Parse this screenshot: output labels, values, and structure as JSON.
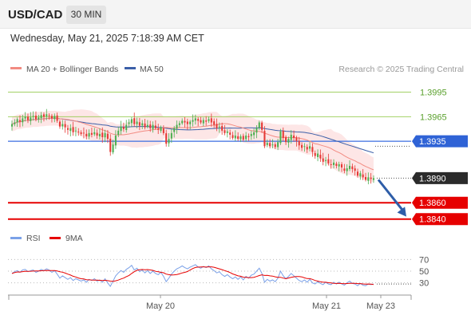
{
  "header": {
    "symbol": "USD/CAD",
    "timeframe": "30 MIN",
    "datetime": "Wednesday, May 21, 2025 7:18:39 AM CET"
  },
  "colors": {
    "bull": "#4caf50",
    "bear": "#e53935",
    "ma20": "#f28b82",
    "bollinger": "#fde3e3",
    "ma50": "#3b5fa8",
    "support": "#e60000",
    "resistance": "#8cc63f",
    "pivot": "#3b6fe0",
    "arrow": "#2e5da8",
    "rsi": "#7ba1e8"
  },
  "chart_data": [
    {
      "type": "candlestick",
      "legend": [
        {
          "name": "MA 20 + Bollinger Bands",
          "color": "#f28b82"
        },
        {
          "name": "MA 50",
          "color": "#3b5fa8"
        }
      ],
      "credit": "Research © 2025 Trading Central",
      "y_range": [
        1.383,
        1.4015
      ],
      "x_ticks": [
        "May 20",
        "May 21",
        "May 23"
      ],
      "levels": [
        {
          "label": "1.3995",
          "value": 1.3995,
          "kind": "resistance"
        },
        {
          "label": "1.3965",
          "value": 1.3965,
          "kind": "resistance"
        },
        {
          "label": "1.3935",
          "value": 1.3935,
          "kind": "pivot"
        },
        {
          "label": "1.3890",
          "value": 1.389,
          "kind": "last"
        },
        {
          "label": "1.3860",
          "value": 1.386,
          "kind": "support"
        },
        {
          "label": "1.3840",
          "value": 1.384,
          "kind": "support"
        }
      ],
      "closes": [
        1.3956,
        1.3958,
        1.3962,
        1.3959,
        1.3963,
        1.3965,
        1.3961,
        1.3964,
        1.3966,
        1.3962,
        1.3964,
        1.3967,
        1.3965,
        1.3968,
        1.3966,
        1.3963,
        1.3966,
        1.396,
        1.3953,
        1.3956,
        1.3952,
        1.3949,
        1.3951,
        1.3946,
        1.3948,
        1.3946,
        1.3944,
        1.3945,
        1.3941,
        1.3945,
        1.3943,
        1.3946,
        1.3942,
        1.3944,
        1.394,
        1.3945,
        1.3938,
        1.3922,
        1.3931,
        1.3942,
        1.3948,
        1.3953,
        1.395,
        1.3955,
        1.3958,
        1.3962,
        1.3956,
        1.3959,
        1.3954,
        1.3957,
        1.3952,
        1.3955,
        1.3951,
        1.3955,
        1.3951,
        1.3949,
        1.3952,
        1.3945,
        1.3932,
        1.3938,
        1.3945,
        1.3951,
        1.3955,
        1.3957,
        1.396,
        1.3958,
        1.3956,
        1.3959,
        1.3961,
        1.3963,
        1.396,
        1.3958,
        1.3961,
        1.3959,
        1.3962,
        1.3958,
        1.3955,
        1.3951,
        1.3953,
        1.3948,
        1.3945,
        1.3947,
        1.3943,
        1.3939,
        1.3942,
        1.3938,
        1.3941,
        1.3937,
        1.3942,
        1.394,
        1.3944,
        1.3946,
        1.3951,
        1.3958,
        1.3949,
        1.3929,
        1.3933,
        1.3929,
        1.3931,
        1.3928,
        1.3934,
        1.3947,
        1.3939,
        1.3934,
        1.3938,
        1.3943,
        1.3939,
        1.3935,
        1.393,
        1.3927,
        1.3929,
        1.3925,
        1.3929,
        1.3922,
        1.3917,
        1.392,
        1.3914,
        1.391,
        1.3912,
        1.3908,
        1.3906,
        1.3909,
        1.3905,
        1.3907,
        1.3903,
        1.3899,
        1.3902,
        1.3905,
        1.3901,
        1.3899,
        1.3893,
        1.3896,
        1.3891,
        1.3888,
        1.3891,
        1.3889,
        1.389
      ]
    },
    {
      "type": "line",
      "legend": [
        {
          "name": "RSI",
          "color": "#7ba1e8"
        },
        {
          "name": "9MA",
          "color": "#e60000"
        }
      ],
      "y_ticks": [
        70,
        50,
        30
      ],
      "rsi": [
        46,
        49,
        51,
        48,
        52,
        53,
        49,
        51,
        52,
        48,
        50,
        53,
        51,
        54,
        52,
        48,
        51,
        45,
        38,
        42,
        39,
        36,
        39,
        34,
        37,
        35,
        33,
        35,
        31,
        36,
        34,
        37,
        33,
        35,
        31,
        37,
        30,
        24,
        33,
        42,
        47,
        51,
        48,
        53,
        56,
        60,
        52,
        55,
        49,
        52,
        47,
        51,
        46,
        50,
        46,
        44,
        48,
        41,
        32,
        38,
        45,
        50,
        54,
        56,
        59,
        56,
        54,
        57,
        59,
        61,
        57,
        55,
        58,
        56,
        59,
        54,
        51,
        47,
        49,
        44,
        41,
        44,
        40,
        37,
        40,
        36,
        40,
        35,
        41,
        38,
        43,
        45,
        50,
        55,
        46,
        31,
        36,
        33,
        35,
        32,
        38,
        50,
        42,
        37,
        41,
        46,
        42,
        38,
        34,
        32,
        35,
        31,
        36,
        30,
        28,
        32,
        29,
        27,
        31,
        28,
        27,
        31,
        28,
        31,
        28,
        26,
        30,
        33,
        29,
        28,
        25,
        29,
        26,
        25,
        28,
        27,
        28
      ]
    }
  ]
}
